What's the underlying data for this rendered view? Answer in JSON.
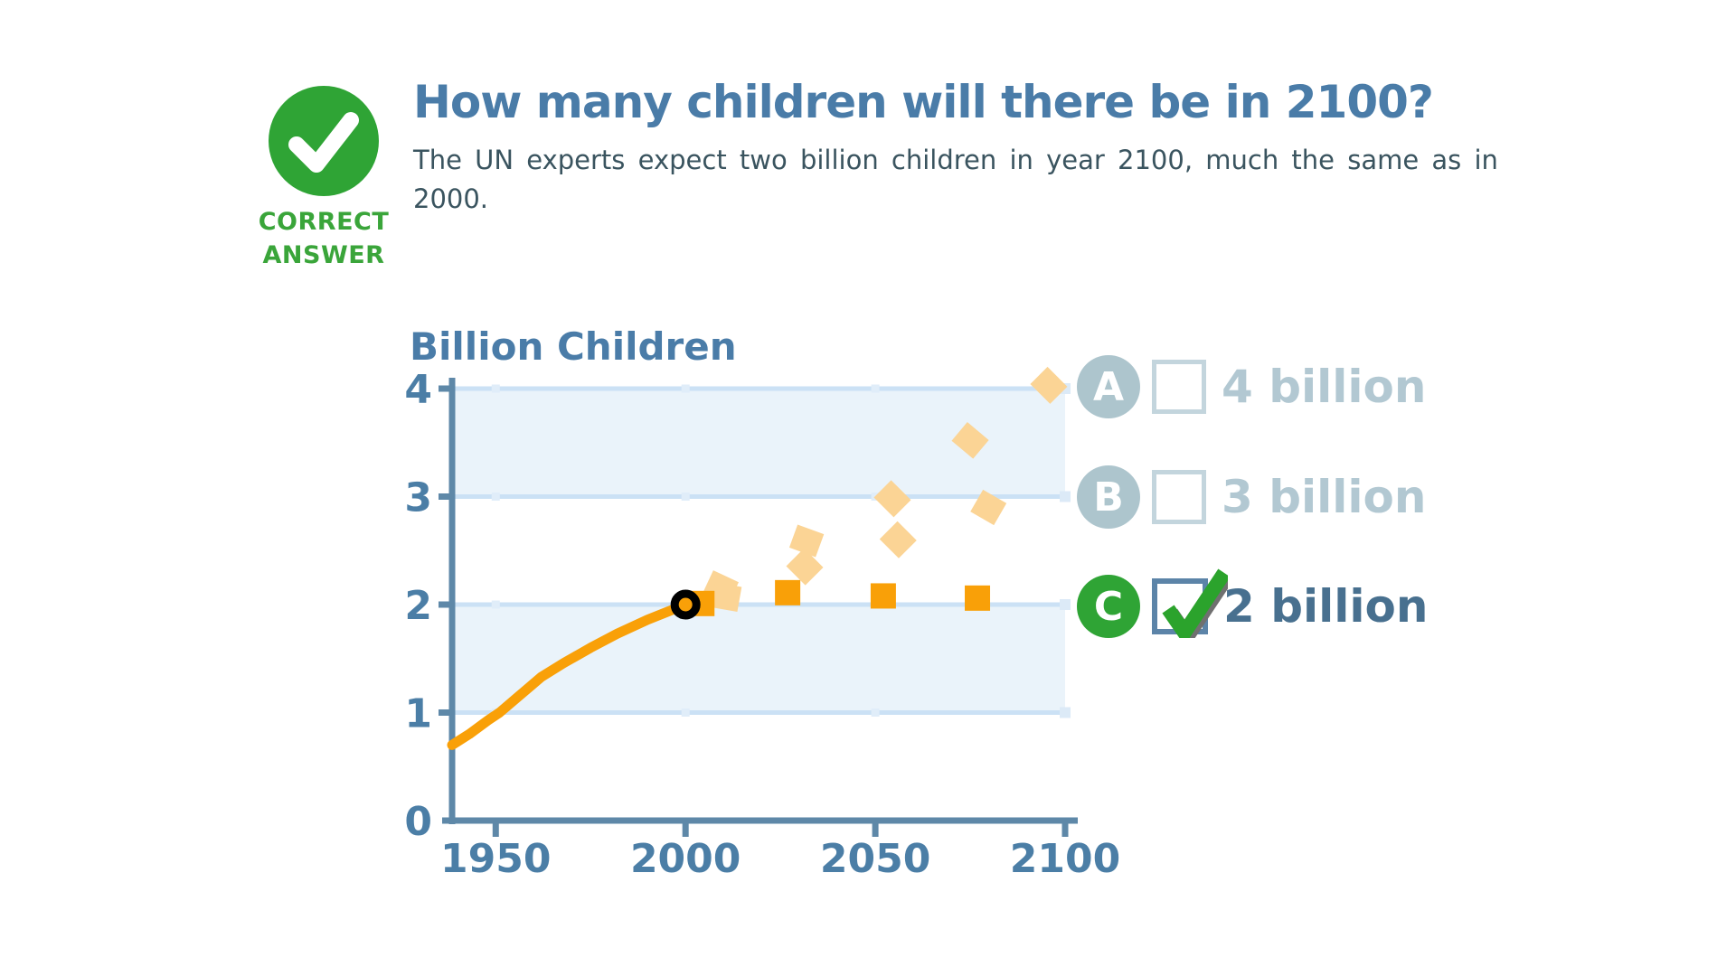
{
  "badge": {
    "icon": "check-circle",
    "line1": "CORRECT",
    "line2": "ANSWER"
  },
  "header": {
    "title": "How many children will there be in 2100?",
    "subtitle_line1": "The UN experts expect two billion children in year 2100, much the same as in",
    "subtitle_line2": "2000."
  },
  "answers": {
    "options": [
      {
        "letter": "A",
        "label": "4 billion",
        "checked": false
      },
      {
        "letter": "B",
        "label": "3 billion",
        "checked": false
      },
      {
        "letter": "C",
        "label": "2 billion",
        "checked": true
      }
    ]
  },
  "colors": {
    "accent_green": "#2FA435",
    "check_green": "#2BA32C",
    "title_blue": "#4A7CA8",
    "axis_blue": "#5E88A8",
    "tick_label_blue": "#4B7EA6",
    "muted_option": "#B2C8D2",
    "selected_label": "#48708F",
    "band_fill": "#EAF3FA",
    "gridline": "#CBE1F5",
    "line_orange": "#F9A008",
    "pale_orange": "#FBD495"
  },
  "chart_data": {
    "type": "line",
    "title": "Billion Children",
    "x_range": [
      1938.5,
      2100
    ],
    "y_range": [
      0,
      4
    ],
    "x_ticks": [
      1950,
      2000,
      2050,
      2100
    ],
    "y_ticks": [
      0,
      1,
      2,
      3,
      4
    ],
    "bands": [
      [
        1,
        2
      ],
      [
        3,
        4
      ]
    ],
    "grid": true,
    "legend": "none",
    "series": [
      {
        "name": "observed-children",
        "type": "solid-line",
        "color": "#F9A008",
        "points": [
          [
            1938.5,
            0.7
          ],
          [
            1943,
            0.8
          ],
          [
            1948,
            0.93
          ],
          [
            1951,
            1.0
          ],
          [
            1956,
            1.15
          ],
          [
            1962,
            1.33
          ],
          [
            1968,
            1.46
          ],
          [
            1975,
            1.6
          ],
          [
            1982,
            1.73
          ],
          [
            1990,
            1.86
          ],
          [
            1995,
            1.93
          ],
          [
            2000,
            2.0
          ]
        ]
      },
      {
        "name": "projection-a-4-billion",
        "type": "dash-marks",
        "color": "#FBD495",
        "mark_size": [
          31,
          27
        ],
        "marks": [
          [
            2009.3,
            2.16,
            25
          ],
          [
            2031.9,
            2.59,
            20
          ],
          [
            2054.5,
            2.98,
            45
          ],
          [
            2075.0,
            3.52,
            40
          ],
          [
            2095.7,
            4.03,
            45
          ]
        ]
      },
      {
        "name": "projection-b-3-billion",
        "type": "dash-marks",
        "color": "#FBD495",
        "mark_size": [
          30,
          28
        ],
        "marks": [
          [
            2010.7,
            2.07,
            10
          ],
          [
            2031.4,
            2.35,
            45
          ],
          [
            2056.0,
            2.6,
            45
          ],
          [
            2079.8,
            2.9,
            30
          ]
        ]
      },
      {
        "name": "projection-c-2-billion-expected",
        "type": "dash-marks",
        "color": "#F9A008",
        "mark_size": [
          28,
          28
        ],
        "marks": [
          [
            2004.3,
            2.01,
            0
          ],
          [
            2026.9,
            2.11,
            0
          ],
          [
            2052.1,
            2.08,
            0
          ],
          [
            2076.9,
            2.06,
            0
          ]
        ]
      }
    ],
    "marker": {
      "x": 2000,
      "y": 2.0
    }
  }
}
